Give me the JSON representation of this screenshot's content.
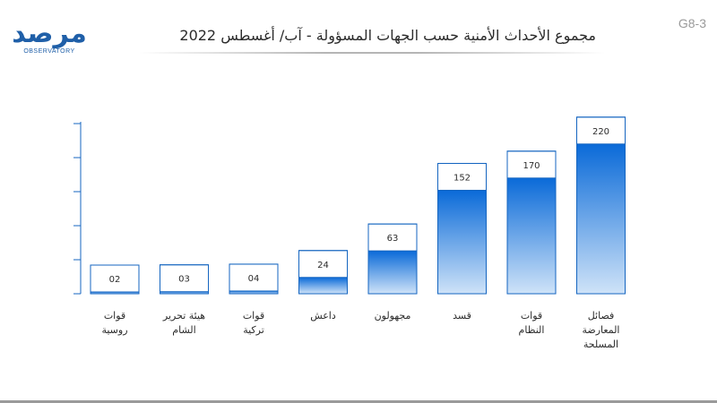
{
  "header": {
    "title": "مجموع الأحداث الأمنية حسب الجهات المسؤولة - آب/ أغسطس 2022",
    "code": "G8-3",
    "logo_text": "مرصد",
    "logo_sub": "OBSERVATORY"
  },
  "colors": {
    "bar_top": "#0a6ad8",
    "bar_bottom": "#cfe3f8",
    "box_border": "#1565c0",
    "axis": "#1565c0"
  },
  "chart_data": {
    "type": "bar",
    "categories": [
      [
        "قوات",
        "روسية"
      ],
      [
        "هيئة تحرير",
        "الشام"
      ],
      [
        "قوات",
        "تركية"
      ],
      [
        "داعش"
      ],
      [
        "مجهولون"
      ],
      [
        "قسد"
      ],
      [
        "قوات",
        "النظام"
      ],
      [
        "فصائل",
        "المعارضة",
        "المسلحة"
      ]
    ],
    "values": [
      2,
      3,
      4,
      24,
      63,
      152,
      170,
      220
    ],
    "value_labels": [
      "02",
      "03",
      "04",
      "24",
      "63",
      "152",
      "170",
      "220"
    ],
    "ylim": [
      0,
      250
    ]
  }
}
